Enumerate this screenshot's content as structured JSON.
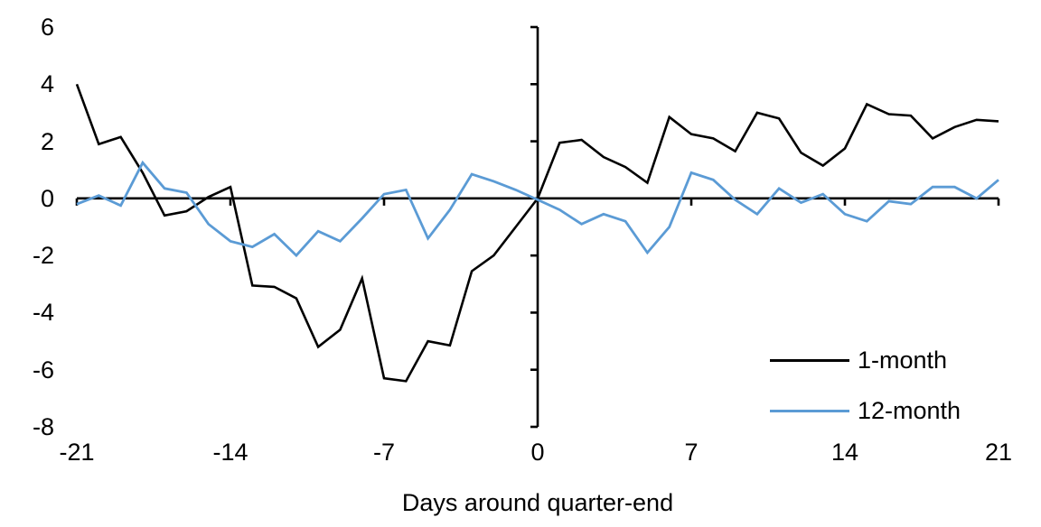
{
  "chart_data": {
    "type": "line",
    "title": "",
    "xlabel": "Days around quarter-end",
    "ylabel": "",
    "xlim": [
      -21,
      21
    ],
    "ylim": [
      -8,
      6
    ],
    "xticks": [
      -21,
      -14,
      -7,
      0,
      7,
      14,
      21
    ],
    "yticks": [
      6,
      4,
      2,
      0,
      -2,
      -4,
      -6,
      -8
    ],
    "grid": false,
    "legend_position": "inside-bottom-right",
    "axis_color": "#000000",
    "x": [
      -21,
      -20,
      -19,
      -18,
      -17,
      -16,
      -15,
      -14,
      -13,
      -12,
      -11,
      -10,
      -9,
      -8,
      -7,
      -6,
      -5,
      -4,
      -3,
      -2,
      -1,
      0,
      1,
      2,
      3,
      4,
      5,
      6,
      7,
      8,
      9,
      10,
      11,
      12,
      13,
      14,
      15,
      16,
      17,
      18,
      19,
      20,
      21
    ],
    "series": [
      {
        "name": "1-month",
        "color": "#000000",
        "values": [
          4.0,
          1.9,
          2.15,
          0.9,
          -0.6,
          -0.45,
          0.05,
          0.4,
          -3.05,
          -3.1,
          -3.5,
          -5.2,
          -4.6,
          -2.8,
          -6.3,
          -6.4,
          -5.0,
          -5.15,
          -2.55,
          -2.0,
          -1.0,
          0.0,
          1.95,
          2.05,
          1.45,
          1.1,
          0.55,
          2.85,
          2.25,
          2.1,
          1.65,
          3.0,
          2.8,
          1.6,
          1.15,
          1.75,
          3.3,
          2.95,
          2.9,
          2.1,
          2.5,
          2.75,
          2.7
        ]
      },
      {
        "name": "12-month",
        "color": "#5B9BD5",
        "values": [
          -0.2,
          0.1,
          -0.25,
          1.25,
          0.35,
          0.2,
          -0.9,
          -1.5,
          -1.7,
          -1.25,
          -2.0,
          -1.15,
          -1.5,
          -0.7,
          0.15,
          0.3,
          -1.4,
          -0.4,
          0.85,
          0.6,
          0.3,
          -0.05,
          -0.4,
          -0.9,
          -0.55,
          -0.8,
          -1.9,
          -1.0,
          0.9,
          0.65,
          -0.05,
          -0.55,
          0.35,
          -0.15,
          0.15,
          -0.55,
          -0.8,
          -0.1,
          -0.2,
          0.4,
          0.4,
          0.0,
          0.65
        ]
      }
    ]
  }
}
